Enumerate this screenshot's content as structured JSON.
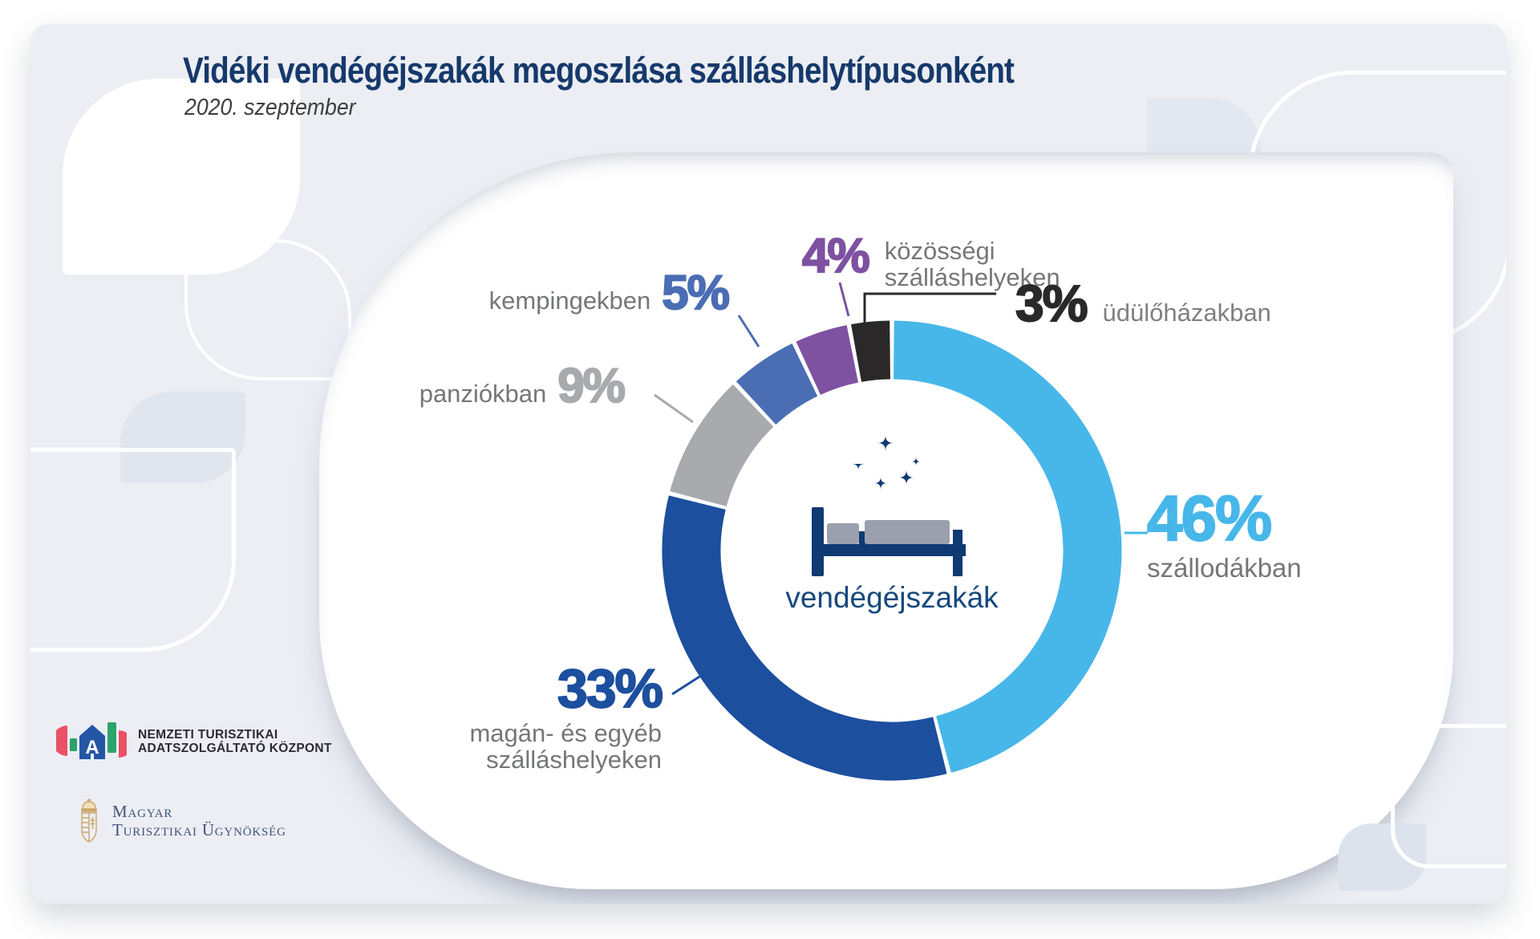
{
  "header": {
    "title": "Vidéki vendégéjszakák megoszlása szálláshelytípusonként",
    "subtitle": "2020. szeptember"
  },
  "chart_data": {
    "type": "pie",
    "donut": true,
    "title": "Vidéki vendégéjszakák megoszlása szálláshelytípusonként",
    "subtitle": "2020. szeptember",
    "unit": "%",
    "center_label": "vendégéjszakák",
    "direction": "clockwise",
    "start_angle_deg": 0,
    "legend_position": "around-donut-callouts",
    "segments": [
      {
        "label": "szállodákban",
        "value": 46,
        "pct_text": "46%",
        "color": "#47B7E9",
        "callout_lines": [
          "szállodákban"
        ]
      },
      {
        "label": "magán- és egyéb szálláshelyeken",
        "value": 33,
        "pct_text": "33%",
        "color": "#1C4F9E",
        "callout_lines": [
          "magán- és egyéb",
          "szálláshelyeken"
        ]
      },
      {
        "label": "panziókban",
        "value": 9,
        "pct_text": "9%",
        "color": "#A8AAAD",
        "callout_lines": [
          "panziókban"
        ]
      },
      {
        "label": "kempingekben",
        "value": 5,
        "pct_text": "5%",
        "color": "#4A6DB4",
        "callout_lines": [
          "kempingekben"
        ]
      },
      {
        "label": "közösségi szálláshelyeken",
        "value": 4,
        "pct_text": "4%",
        "color": "#7E51A1",
        "callout_lines": [
          "közösségi",
          "szálláshelyeken"
        ]
      },
      {
        "label": "üdülőházakban",
        "value": 3,
        "pct_text": "3%",
        "color": "#2B2829",
        "callout_lines": [
          "üdülőházakban"
        ]
      }
    ]
  },
  "footer": {
    "ntak": {
      "line1": "NEMZETI TURISZTIKAI",
      "line2": "ADATSZOLGÁLTATÓ KÖZPONT"
    },
    "mtu": {
      "line1": "Magyar",
      "line2": "Turisztikai Ügynökség"
    }
  },
  "colors": {
    "title": "#16396B",
    "card_bg": "#ECEEF4",
    "panel_bg": "#FFFFFF",
    "label_gray": "#75767A",
    "center_text": "#16497E",
    "bed_navy": "#0F3A72",
    "bed_gray": "#9AA0AE",
    "ntak_red": "#EA5167",
    "ntak_green": "#2EA36B",
    "ntak_blue": "#2456A5",
    "mtu_gold": "#CDA568",
    "mtu_text": "#41547A"
  }
}
